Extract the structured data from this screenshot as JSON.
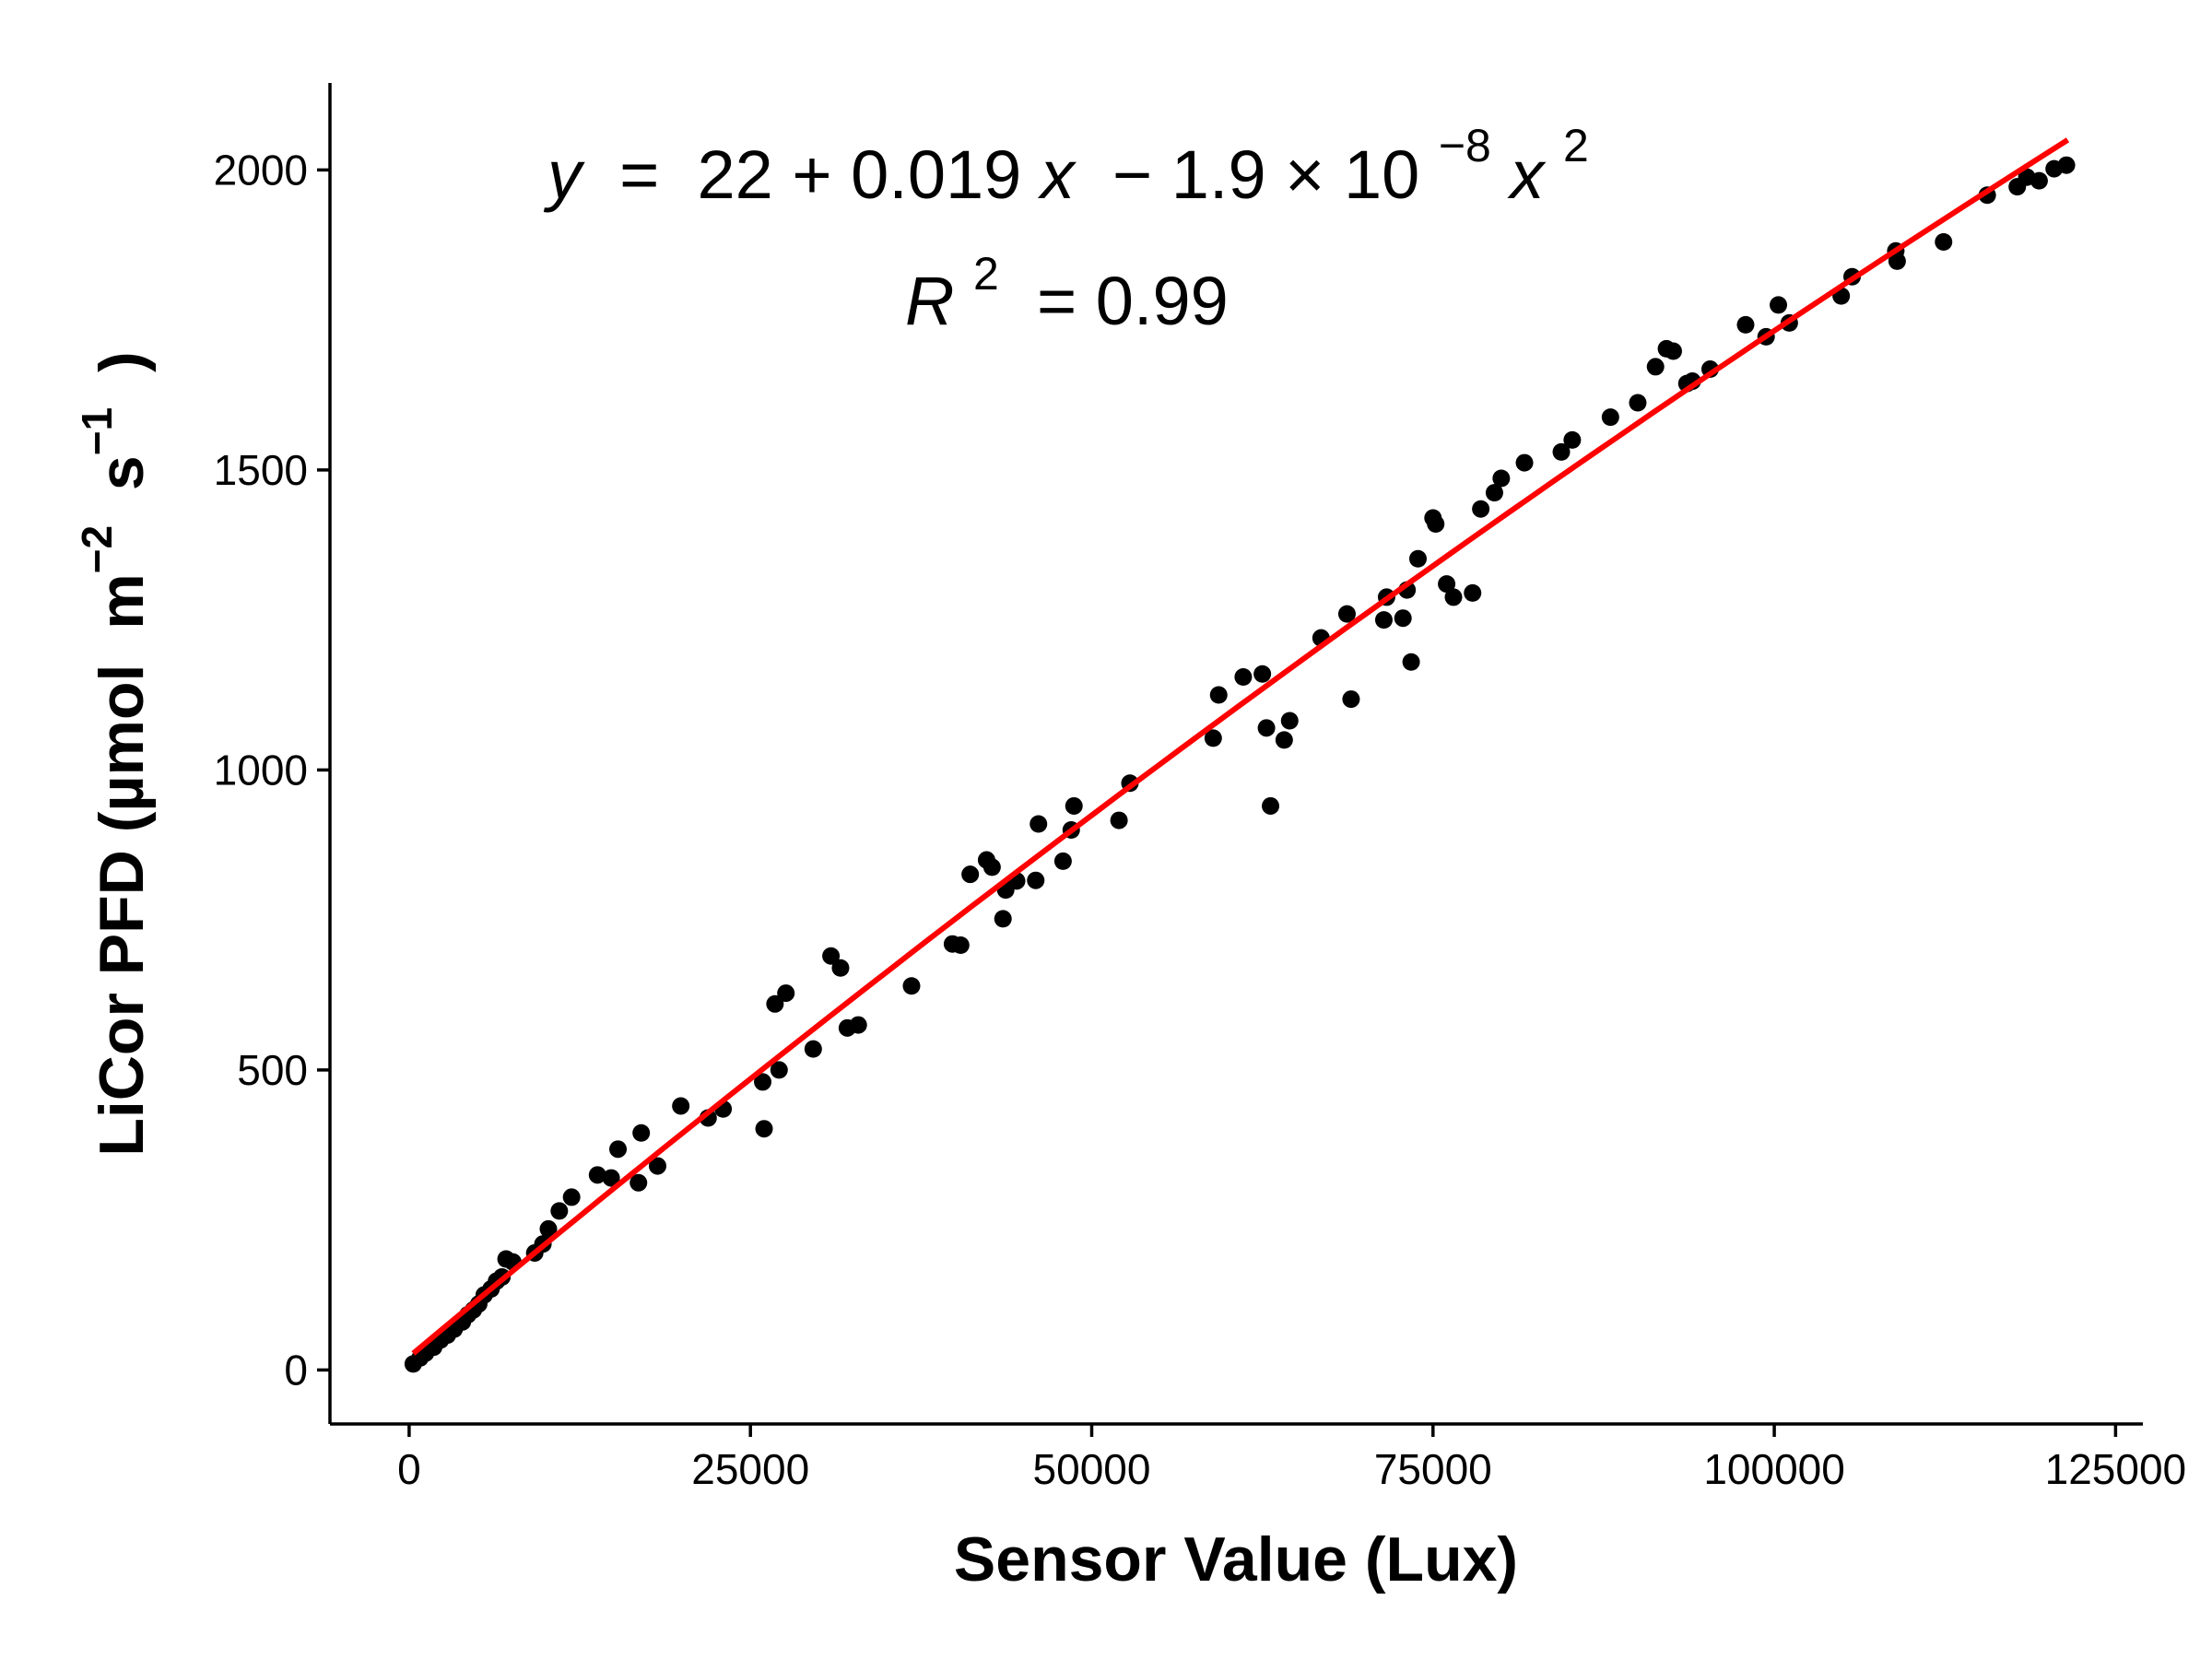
{
  "chart_data": {
    "type": "scatter",
    "title": "",
    "xlabel": "Sensor Value (Lux)",
    "ylabel": {
      "prefix": "LiCor PFD (µmol  m",
      "exp1": "−2",
      "mid": "  s",
      "exp2": "−1",
      "suffix": "  )"
    },
    "xlim": [
      -5800,
      127000
    ],
    "ylim": [
      -90,
      2145
    ],
    "xticks": [
      0,
      25000,
      50000,
      75000,
      100000,
      125000
    ],
    "yticks": [
      0,
      500,
      1000,
      1500,
      2000
    ],
    "grid": false,
    "legend": "none",
    "point_color": "#000000",
    "fit_color": "#ff0000",
    "annotation": {
      "equation": {
        "y": "y",
        "eq": " = ",
        "body": "22 + 0.019",
        "x1": "x",
        "minus": " − 1.9 × 10",
        "exp": "−8",
        "x2": "x",
        "exp2": "2"
      },
      "r2": {
        "r": "R",
        "exp": "2",
        "value": " = 0.99"
      }
    },
    "fit": {
      "model": "quadratic",
      "coefficients": [
        22,
        0.019,
        -1.9e-08
      ],
      "x_range": [
        300,
        121500
      ]
    },
    "series": [
      {
        "points": [
          [
            300,
            10
          ],
          [
            800,
            20
          ],
          [
            1200,
            28
          ],
          [
            1800,
            38
          ],
          [
            2300,
            50
          ],
          [
            2800,
            58
          ],
          [
            3300,
            68
          ],
          [
            3900,
            80
          ],
          [
            4300,
            92
          ],
          [
            4700,
            100
          ],
          [
            5100,
            110
          ],
          [
            5500,
            125
          ],
          [
            6000,
            135
          ],
          [
            6400,
            148
          ],
          [
            6800,
            155
          ],
          [
            7100,
            185
          ],
          [
            7600,
            180
          ],
          [
            9200,
            195
          ],
          [
            9800,
            210
          ],
          [
            10200,
            235
          ],
          [
            11000,
            265
          ],
          [
            11900,
            288
          ],
          [
            13800,
            325
          ],
          [
            14800,
            320
          ],
          [
            15300,
            368
          ],
          [
            16800,
            312
          ],
          [
            17000,
            395
          ],
          [
            18200,
            340
          ],
          [
            19900,
            440
          ],
          [
            21900,
            420
          ],
          [
            23000,
            435
          ],
          [
            25900,
            480
          ],
          [
            26000,
            402
          ],
          [
            26800,
            610
          ],
          [
            27100,
            500
          ],
          [
            27600,
            628
          ],
          [
            29600,
            535
          ],
          [
            30900,
            690
          ],
          [
            31600,
            670
          ],
          [
            32100,
            570
          ],
          [
            32900,
            575
          ],
          [
            36800,
            640
          ],
          [
            39800,
            710
          ],
          [
            40400,
            708
          ],
          [
            41100,
            826
          ],
          [
            42300,
            850
          ],
          [
            42700,
            838
          ],
          [
            43500,
            752
          ],
          [
            43700,
            800
          ],
          [
            44500,
            815
          ],
          [
            45900,
            816
          ],
          [
            46100,
            910
          ],
          [
            47900,
            848
          ],
          [
            48500,
            900
          ],
          [
            48700,
            940
          ],
          [
            52000,
            916
          ],
          [
            52800,
            978
          ],
          [
            58900,
            1053
          ],
          [
            59300,
            1125
          ],
          [
            61100,
            1155
          ],
          [
            62500,
            1160
          ],
          [
            62800,
            1070
          ],
          [
            63100,
            940
          ],
          [
            64100,
            1050
          ],
          [
            64500,
            1082
          ],
          [
            66800,
            1220
          ],
          [
            68700,
            1260
          ],
          [
            69000,
            1118
          ],
          [
            71400,
            1250
          ],
          [
            71600,
            1288
          ],
          [
            72800,
            1253
          ],
          [
            73100,
            1300
          ],
          [
            73400,
            1180
          ],
          [
            73900,
            1352
          ],
          [
            75000,
            1420
          ],
          [
            75200,
            1410
          ],
          [
            76000,
            1310
          ],
          [
            76500,
            1288
          ],
          [
            77900,
            1295
          ],
          [
            78500,
            1435
          ],
          [
            79500,
            1462
          ],
          [
            80000,
            1486
          ],
          [
            81700,
            1512
          ],
          [
            84400,
            1530
          ],
          [
            85200,
            1550
          ],
          [
            88000,
            1588
          ],
          [
            90000,
            1612
          ],
          [
            91300,
            1672
          ],
          [
            92100,
            1702
          ],
          [
            92600,
            1698
          ],
          [
            93600,
            1644
          ],
          [
            94000,
            1648
          ],
          [
            95300,
            1668
          ],
          [
            97900,
            1742
          ],
          [
            99400,
            1722
          ],
          [
            100300,
            1775
          ],
          [
            101100,
            1745
          ],
          [
            104900,
            1790
          ],
          [
            105700,
            1822
          ],
          [
            108900,
            1865
          ],
          [
            109000,
            1848
          ],
          [
            112400,
            1880
          ],
          [
            115600,
            1958
          ],
          [
            117800,
            1972
          ],
          [
            118500,
            1988
          ],
          [
            119400,
            1982
          ],
          [
            120500,
            2002
          ],
          [
            121400,
            2008
          ]
        ]
      }
    ]
  }
}
